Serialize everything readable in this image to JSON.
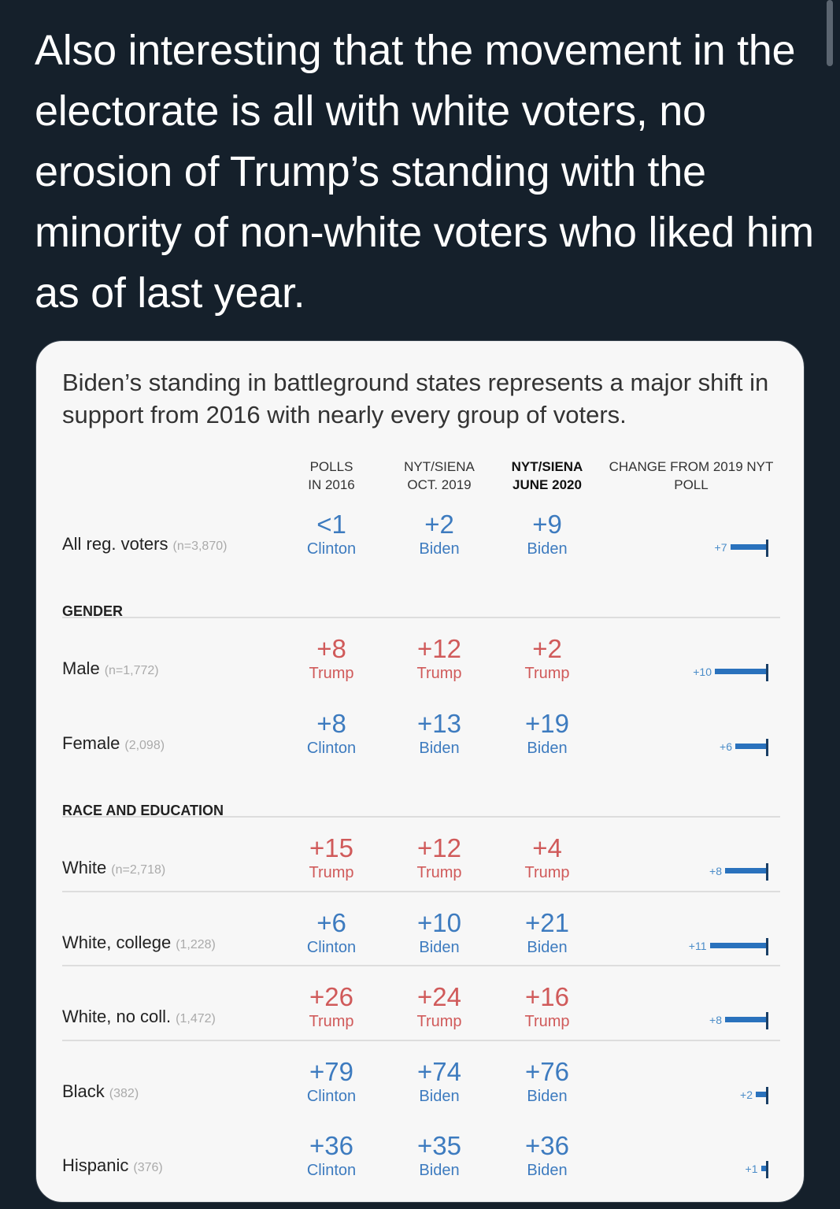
{
  "tweet": {
    "text": "Also interesting that the movement in the electorate is all with white voters, no erosion of Trump’s standing with the minority of non-white voters who liked him as of last year."
  },
  "card": {
    "subtitle": "Biden’s standing in battleground states represents a major shift in support from 2016 with nearly every group of voters.",
    "columns": [
      {
        "line1": "POLLS",
        "line2": "IN 2016"
      },
      {
        "line1": "NYT/SIENA",
        "line2": "OCT. 2019"
      },
      {
        "line1": "NYT/SIENA",
        "line2": "JUNE 2020"
      }
    ],
    "change_header": {
      "line1": "CHANGE FROM 2019 NYT",
      "line2": "POLL"
    },
    "sections": {
      "gender": "GENDER",
      "race": "RACE AND EDUCATION"
    },
    "rows": [
      {
        "label": "All reg. voters",
        "n": "(n=3,870)",
        "c2016": {
          "val": "<1",
          "who": "Clinton"
        },
        "c2019": {
          "val": "+2",
          "who": "Biden"
        },
        "c2020": {
          "val": "+9",
          "who": "Biden"
        },
        "change": "+7"
      },
      {
        "label": "Male",
        "n": "(n=1,772)",
        "c2016": {
          "val": "+8",
          "who": "Trump"
        },
        "c2019": {
          "val": "+12",
          "who": "Trump"
        },
        "c2020": {
          "val": "+2",
          "who": "Trump"
        },
        "change": "+10"
      },
      {
        "label": "Female",
        "n": "(2,098)",
        "c2016": {
          "val": "+8",
          "who": "Clinton"
        },
        "c2019": {
          "val": "+13",
          "who": "Biden"
        },
        "c2020": {
          "val": "+19",
          "who": "Biden"
        },
        "change": "+6"
      },
      {
        "label": "White",
        "n": "(n=2,718)",
        "c2016": {
          "val": "+15",
          "who": "Trump"
        },
        "c2019": {
          "val": "+12",
          "who": "Trump"
        },
        "c2020": {
          "val": "+4",
          "who": "Trump"
        },
        "change": "+8"
      },
      {
        "label": "White, college",
        "n": "(1,228)",
        "c2016": {
          "val": "+6",
          "who": "Clinton"
        },
        "c2019": {
          "val": "+10",
          "who": "Biden"
        },
        "c2020": {
          "val": "+21",
          "who": "Biden"
        },
        "change": "+11"
      },
      {
        "label": "White, no coll.",
        "n": "(1,472)",
        "c2016": {
          "val": "+26",
          "who": "Trump"
        },
        "c2019": {
          "val": "+24",
          "who": "Trump"
        },
        "c2020": {
          "val": "+16",
          "who": "Trump"
        },
        "change": "+8"
      },
      {
        "label": "Black",
        "n": "(382)",
        "c2016": {
          "val": "+79",
          "who": "Clinton"
        },
        "c2019": {
          "val": "+74",
          "who": "Biden"
        },
        "c2020": {
          "val": "+76",
          "who": "Biden"
        },
        "change": "+2"
      },
      {
        "label": "Hispanic",
        "n": "(376)",
        "c2016": {
          "val": "+36",
          "who": "Clinton"
        },
        "c2019": {
          "val": "+35",
          "who": "Biden"
        },
        "c2020": {
          "val": "+36",
          "who": "Biden"
        },
        "change": "+1"
      }
    ]
  },
  "colors": {
    "trump": "#d05a5a",
    "dem": "#3d7bbf",
    "bar": "#2a72bd"
  }
}
